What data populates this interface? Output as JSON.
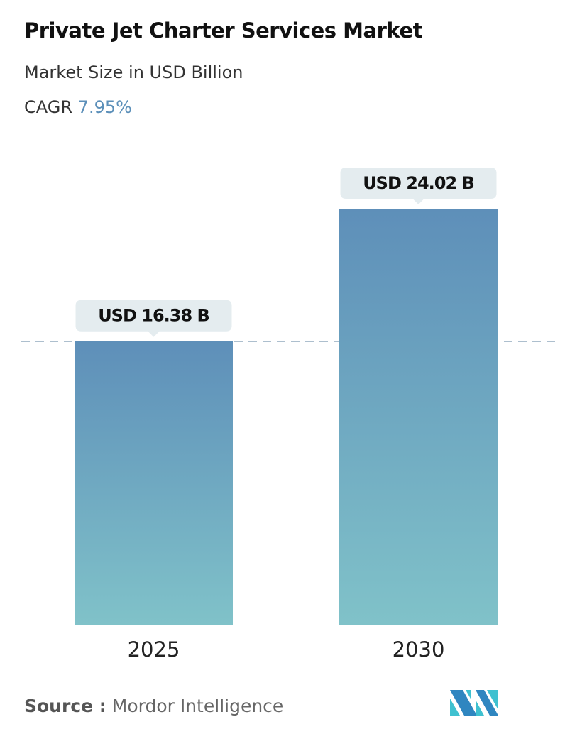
{
  "title": "Private Jet Charter Services Market",
  "subtitle": "Market Size in USD Billion",
  "cagr_label": "CAGR",
  "cagr_value": "7.95%",
  "source_label": "Source :",
  "source_value": "Mordor Intelligence",
  "colors": {
    "bar_top": "#5e8fb9",
    "bar_bottom": "#80c2c9",
    "label_bg": "#e4ecef",
    "dash": "#5b7f9e",
    "cagr": "#5b8fb9"
  },
  "chart_data": {
    "type": "bar",
    "categories": [
      "2025",
      "2030"
    ],
    "values": [
      16.38,
      24.02
    ],
    "data_labels": [
      "USD 16.38 B",
      "USD 24.02 B"
    ],
    "reference_line": 16.38,
    "ylim": [
      0,
      24.02
    ],
    "grid": false
  }
}
